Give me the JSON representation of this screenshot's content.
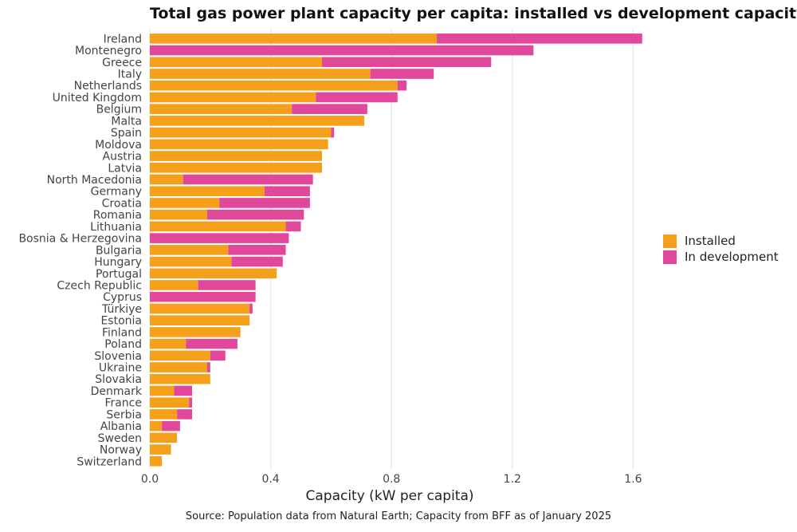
{
  "chart_data": {
    "type": "bar",
    "orientation": "horizontal",
    "stacked": true,
    "title": "Total gas power plant capacity per capita: installed vs development capacity",
    "xlabel": "Capacity (kW per capita)",
    "ylabel": "",
    "xlim": [
      0,
      1.7
    ],
    "xticks": [
      0,
      0.4,
      0.8,
      1.2,
      1.6
    ],
    "xtick_labels": [
      "0.0",
      "0.4",
      "0.8",
      "1.2",
      "1.6"
    ],
    "grid": "vertical",
    "legend_position": "right",
    "categories": [
      "Ireland",
      "Montenegro",
      "Greece",
      "Italy",
      "Netherlands",
      "United Kingdom",
      "Belgium",
      "Malta",
      "Spain",
      "Moldova",
      "Austria",
      "Latvia",
      "North Macedonia",
      "Germany",
      "Croatia",
      "Romania",
      "Lithuania",
      "Bosnia & Herzegovina",
      "Bulgaria",
      "Hungary",
      "Portugal",
      "Czech Republic",
      "Cyprus",
      "Türkiye",
      "Estonia",
      "Finland",
      "Poland",
      "Slovenia",
      "Ukraine",
      "Slovakia",
      "Denmark",
      "France",
      "Serbia",
      "Albania",
      "Sweden",
      "Norway",
      "Switzerland"
    ],
    "series": [
      {
        "name": "Installed",
        "color": "#f5a01a",
        "values": [
          0.95,
          0.0,
          0.57,
          0.73,
          0.82,
          0.55,
          0.47,
          0.71,
          0.6,
          0.59,
          0.57,
          0.57,
          0.11,
          0.38,
          0.23,
          0.19,
          0.45,
          0.0,
          0.26,
          0.27,
          0.42,
          0.16,
          0.0,
          0.33,
          0.33,
          0.3,
          0.12,
          0.2,
          0.19,
          0.2,
          0.08,
          0.13,
          0.09,
          0.04,
          0.09,
          0.07,
          0.04
        ]
      },
      {
        "name": "In development",
        "color": "#e1479a",
        "values": [
          0.68,
          1.27,
          0.56,
          0.21,
          0.03,
          0.27,
          0.25,
          0.0,
          0.01,
          0.0,
          0.0,
          0.0,
          0.43,
          0.15,
          0.3,
          0.32,
          0.05,
          0.46,
          0.19,
          0.17,
          0.0,
          0.19,
          0.35,
          0.01,
          0.0,
          0.0,
          0.17,
          0.05,
          0.01,
          0.0,
          0.06,
          0.01,
          0.05,
          0.06,
          0.0,
          0.0,
          0.0
        ]
      }
    ],
    "source": "Source: Population data from Natural Earth; Capacity from BFF as of January 2025"
  }
}
